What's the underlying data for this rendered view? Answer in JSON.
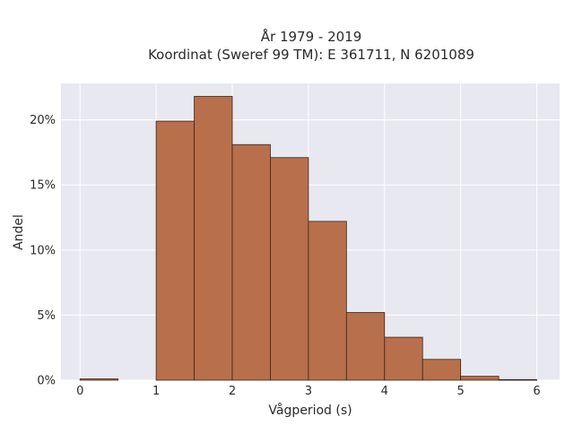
{
  "chart_data": {
    "type": "bar",
    "title_line1": "År 1979 - 2019",
    "title_line2": "Koordinat (Sweref 99 TM): E 361711, N 6201089",
    "xlabel": "Vågperiod (s)",
    "ylabel": "Andel",
    "xlim": [
      -0.25,
      6.3
    ],
    "ylim": [
      0,
      22.8
    ],
    "x_ticks": [
      0,
      1,
      2,
      3,
      4,
      5,
      6
    ],
    "x_tick_labels": [
      "0",
      "1",
      "2",
      "3",
      "4",
      "5",
      "6"
    ],
    "y_ticks": [
      0,
      5,
      10,
      15,
      20
    ],
    "y_tick_labels": [
      "0%",
      "5%",
      "10%",
      "15%",
      "20%"
    ],
    "grid": true,
    "bin_edges": [
      0,
      0.5,
      1.0,
      1.5,
      2.0,
      2.5,
      3.0,
      3.5,
      4.0,
      4.5,
      5.0,
      5.5,
      6.0
    ],
    "values": [
      0.1,
      0,
      19.9,
      21.8,
      18.1,
      17.1,
      12.2,
      5.2,
      3.3,
      1.6,
      0.3,
      0.05
    ],
    "colors": {
      "bar_fill": "#b86f4c",
      "bar_edge": "#3d2516",
      "plot_bg": "#e8e8f0",
      "grid": "#ffffff"
    }
  }
}
